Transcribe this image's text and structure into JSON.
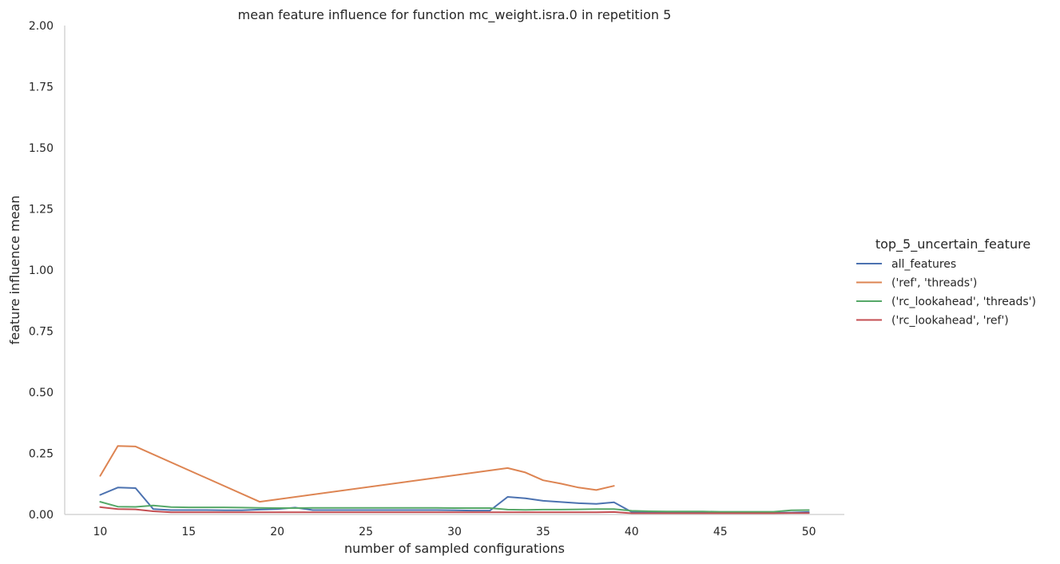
{
  "chart_data": {
    "type": "line",
    "title": "mean feature influence for function mc_weight.isra.0 in repetition 5",
    "xlabel": "number of sampled configurations",
    "ylabel": "feature influence mean",
    "xlim": [
      8,
      52
    ],
    "ylim": [
      0,
      2.0
    ],
    "xticks": [
      10,
      15,
      20,
      25,
      30,
      35,
      40,
      45,
      50
    ],
    "yticks": [
      0.0,
      0.25,
      0.5,
      0.75,
      1.0,
      1.25,
      1.5,
      1.75,
      2.0
    ],
    "ytick_labels": [
      "0.00",
      "0.25",
      "0.50",
      "0.75",
      "1.00",
      "1.25",
      "1.50",
      "1.75",
      "2.00"
    ],
    "grid": false,
    "legend": {
      "title": "top_5_uncertain_feature",
      "placement": "right"
    },
    "series": [
      {
        "name": "all_features",
        "color": "#4c72b0",
        "x": [
          10,
          11,
          12,
          13,
          14,
          15,
          16,
          17,
          18,
          19,
          20,
          21,
          22,
          23,
          24,
          25,
          26,
          27,
          28,
          29,
          30,
          31,
          32,
          33,
          34,
          35,
          36,
          37,
          38,
          39,
          40,
          41,
          42,
          43,
          44,
          45,
          46,
          47,
          48,
          49,
          50
        ],
        "y": [
          0.08,
          0.11,
          0.108,
          0.022,
          0.018,
          0.018,
          0.018,
          0.017,
          0.017,
          0.02,
          0.022,
          0.028,
          0.018,
          0.018,
          0.018,
          0.018,
          0.018,
          0.018,
          0.018,
          0.018,
          0.017,
          0.016,
          0.016,
          0.072,
          0.066,
          0.056,
          0.051,
          0.046,
          0.043,
          0.05,
          0.01,
          0.008,
          0.008,
          0.008,
          0.007,
          0.007,
          0.007,
          0.007,
          0.007,
          0.008,
          0.01
        ]
      },
      {
        "name": "('ref', 'threads')",
        "color": "#dd8452",
        "x": [
          10,
          11,
          12,
          19,
          33,
          34,
          35,
          36,
          37,
          38,
          39
        ],
        "y": [
          0.158,
          0.28,
          0.278,
          0.052,
          0.19,
          0.172,
          0.14,
          0.126,
          0.11,
          0.1,
          0.117
        ]
      },
      {
        "name": "('rc_lookahead', 'threads')",
        "color": "#55a868",
        "x": [
          10,
          11,
          12,
          13,
          14,
          15,
          16,
          17,
          18,
          19,
          20,
          21,
          22,
          23,
          24,
          25,
          26,
          27,
          28,
          29,
          30,
          31,
          32,
          33,
          34,
          35,
          36,
          37,
          38,
          39,
          40,
          41,
          42,
          43,
          44,
          45,
          46,
          47,
          48,
          49,
          50
        ],
        "y": [
          0.052,
          0.032,
          0.031,
          0.037,
          0.03,
          0.029,
          0.029,
          0.029,
          0.028,
          0.027,
          0.026,
          0.026,
          0.027,
          0.027,
          0.027,
          0.027,
          0.027,
          0.027,
          0.027,
          0.027,
          0.026,
          0.026,
          0.026,
          0.02,
          0.019,
          0.02,
          0.02,
          0.021,
          0.022,
          0.022,
          0.015,
          0.013,
          0.012,
          0.012,
          0.012,
          0.011,
          0.011,
          0.011,
          0.011,
          0.017,
          0.018
        ]
      },
      {
        "name": "('rc_lookahead', 'ref')",
        "color": "#c44e52",
        "x": [
          10,
          11,
          12,
          13,
          14,
          15,
          16,
          17,
          18,
          19,
          20,
          21,
          22,
          23,
          24,
          25,
          26,
          27,
          28,
          29,
          30,
          31,
          32,
          33,
          34,
          35,
          36,
          37,
          38,
          39,
          40,
          41,
          42,
          43,
          44,
          45,
          46,
          47,
          48,
          49,
          50
        ],
        "y": [
          0.03,
          0.022,
          0.021,
          0.013,
          0.009,
          0.009,
          0.009,
          0.009,
          0.009,
          0.009,
          0.009,
          0.009,
          0.009,
          0.009,
          0.009,
          0.009,
          0.009,
          0.009,
          0.009,
          0.009,
          0.009,
          0.009,
          0.009,
          0.009,
          0.009,
          0.009,
          0.009,
          0.009,
          0.009,
          0.01,
          0.005,
          0.005,
          0.005,
          0.005,
          0.005,
          0.005,
          0.005,
          0.005,
          0.005,
          0.006,
          0.006
        ]
      }
    ]
  }
}
